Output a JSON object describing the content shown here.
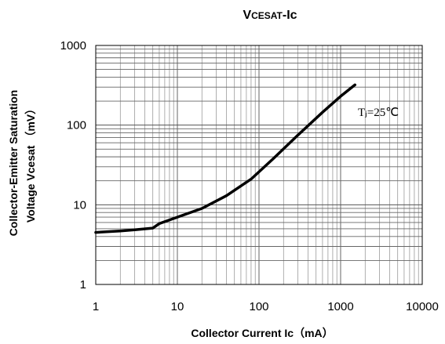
{
  "chart_data": {
    "type": "line",
    "title_main": "V",
    "title_sub": "CESAT",
    "title_rest": "-Ic",
    "xlabel": "Collector Current Ic（mA）",
    "ylabel_line1": "Collector-Emitter Saturation",
    "ylabel_line2": "Voltage Vcesat （mV）",
    "x_scale": "log",
    "y_scale": "log",
    "xlim": [
      1,
      10000
    ],
    "ylim": [
      1,
      1000
    ],
    "x_ticks": [
      "1",
      "10",
      "100",
      "1000",
      "10000"
    ],
    "y_ticks": [
      "1",
      "10",
      "100",
      "1000"
    ],
    "grid": true,
    "annotation": "Tⱼ=25℃",
    "series": [
      {
        "x": [
          1,
          2,
          3,
          5,
          6,
          10,
          20,
          40,
          80,
          150,
          300,
          600,
          1000,
          1500
        ],
        "y": [
          4.5,
          4.7,
          4.85,
          5.1,
          5.8,
          7.0,
          9.0,
          13.0,
          21.0,
          38.0,
          75.0,
          145.0,
          230.0,
          320.0
        ]
      }
    ]
  }
}
